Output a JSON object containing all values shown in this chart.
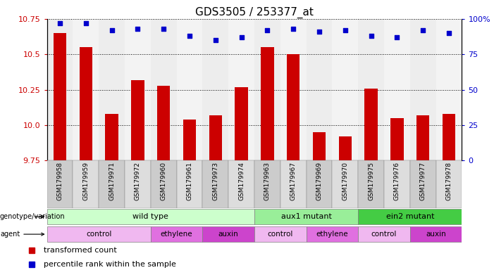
{
  "title": "GDS3505 / 253377_at",
  "samples": [
    "GSM179958",
    "GSM179959",
    "GSM179971",
    "GSM179972",
    "GSM179960",
    "GSM179961",
    "GSM179973",
    "GSM179974",
    "GSM179963",
    "GSM179967",
    "GSM179969",
    "GSM179970",
    "GSM179975",
    "GSM179976",
    "GSM179977",
    "GSM179978"
  ],
  "bar_values": [
    10.65,
    10.55,
    10.08,
    10.32,
    10.28,
    10.04,
    10.07,
    10.27,
    10.55,
    10.5,
    9.95,
    9.92,
    10.26,
    10.05,
    10.07,
    10.08
  ],
  "percentile_values": [
    97,
    97,
    92,
    93,
    93,
    88,
    85,
    87,
    92,
    93,
    91,
    92,
    88,
    87,
    92,
    90
  ],
  "ylim_left": [
    9.75,
    10.75
  ],
  "ylim_right": [
    0,
    100
  ],
  "yticks_left": [
    9.75,
    10.0,
    10.25,
    10.5,
    10.75
  ],
  "yticks_right": [
    0,
    25,
    50,
    75,
    100
  ],
  "ytick_labels_right": [
    "0",
    "25",
    "50",
    "75",
    "100%"
  ],
  "bar_color": "#cc0000",
  "dot_color": "#0000cc",
  "groups": [
    {
      "label": "wild type",
      "start": 0,
      "end": 8,
      "color": "#ccffcc"
    },
    {
      "label": "aux1 mutant",
      "start": 8,
      "end": 12,
      "color": "#99ee99"
    },
    {
      "label": "ein2 mutant",
      "start": 12,
      "end": 16,
      "color": "#44cc44"
    }
  ],
  "agents": [
    {
      "label": "control",
      "start": 0,
      "end": 4,
      "color": "#f0b8f0"
    },
    {
      "label": "ethylene",
      "start": 4,
      "end": 6,
      "color": "#e070e0"
    },
    {
      "label": "auxin",
      "start": 6,
      "end": 8,
      "color": "#cc44cc"
    },
    {
      "label": "control",
      "start": 8,
      "end": 10,
      "color": "#f0b8f0"
    },
    {
      "label": "ethylene",
      "start": 10,
      "end": 12,
      "color": "#e070e0"
    },
    {
      "label": "control",
      "start": 12,
      "end": 14,
      "color": "#f0b8f0"
    },
    {
      "label": "auxin",
      "start": 14,
      "end": 16,
      "color": "#cc44cc"
    }
  ],
  "legend_items": [
    {
      "label": "transformed count",
      "color": "#cc0000"
    },
    {
      "label": "percentile rank within the sample",
      "color": "#0000cc"
    }
  ],
  "left_label_color": "#cc0000",
  "right_label_color": "#0000cc",
  "bg_color": "#ffffff",
  "col_colors": [
    "#cccccc",
    "#dddddd"
  ]
}
